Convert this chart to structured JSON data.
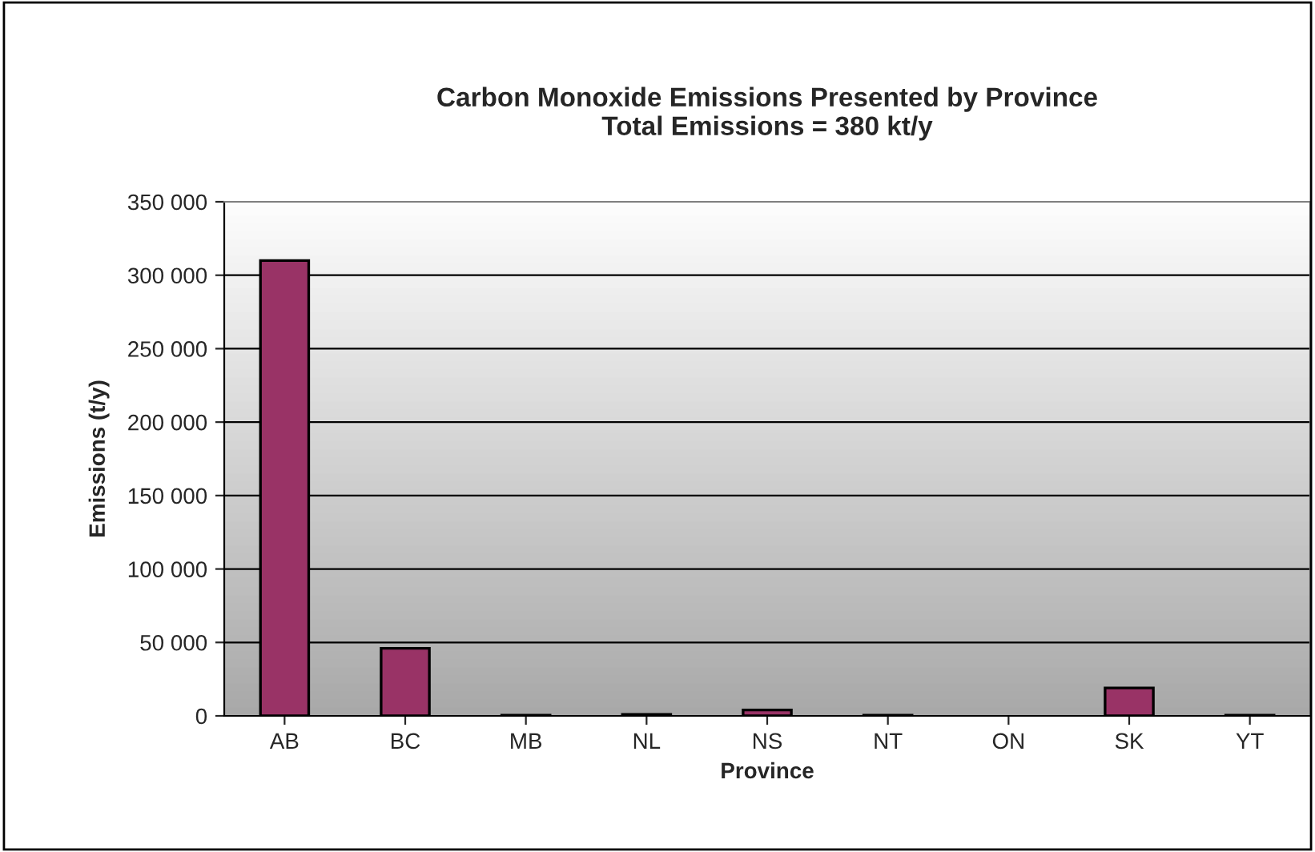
{
  "chart_data": {
    "type": "bar",
    "title": "Carbon Monoxide Emissions Presented by Province\nTotal Emissions = 380 kt/y",
    "xlabel": "Province",
    "ylabel": "Emissions (t/y)",
    "categories": [
      "AB",
      "BC",
      "MB",
      "NL",
      "NS",
      "NT",
      "ON",
      "SK",
      "YT"
    ],
    "values": [
      310000,
      46000,
      500,
      1000,
      4000,
      500,
      null,
      19000,
      500
    ],
    "color": "#993366",
    "ylim": [
      0,
      350000
    ],
    "yticks": [
      {
        "value": 0,
        "label": "0"
      },
      {
        "value": 50000,
        "label": "50 000"
      },
      {
        "value": 100000,
        "label": "100 000"
      },
      {
        "value": 150000,
        "label": "150 000"
      },
      {
        "value": 200000,
        "label": "200 000"
      },
      {
        "value": 250000,
        "label": "250 000"
      },
      {
        "value": 300000,
        "label": "300 000"
      },
      {
        "value": 350000,
        "label": "350 000"
      }
    ],
    "grid": "y",
    "legend": false
  }
}
